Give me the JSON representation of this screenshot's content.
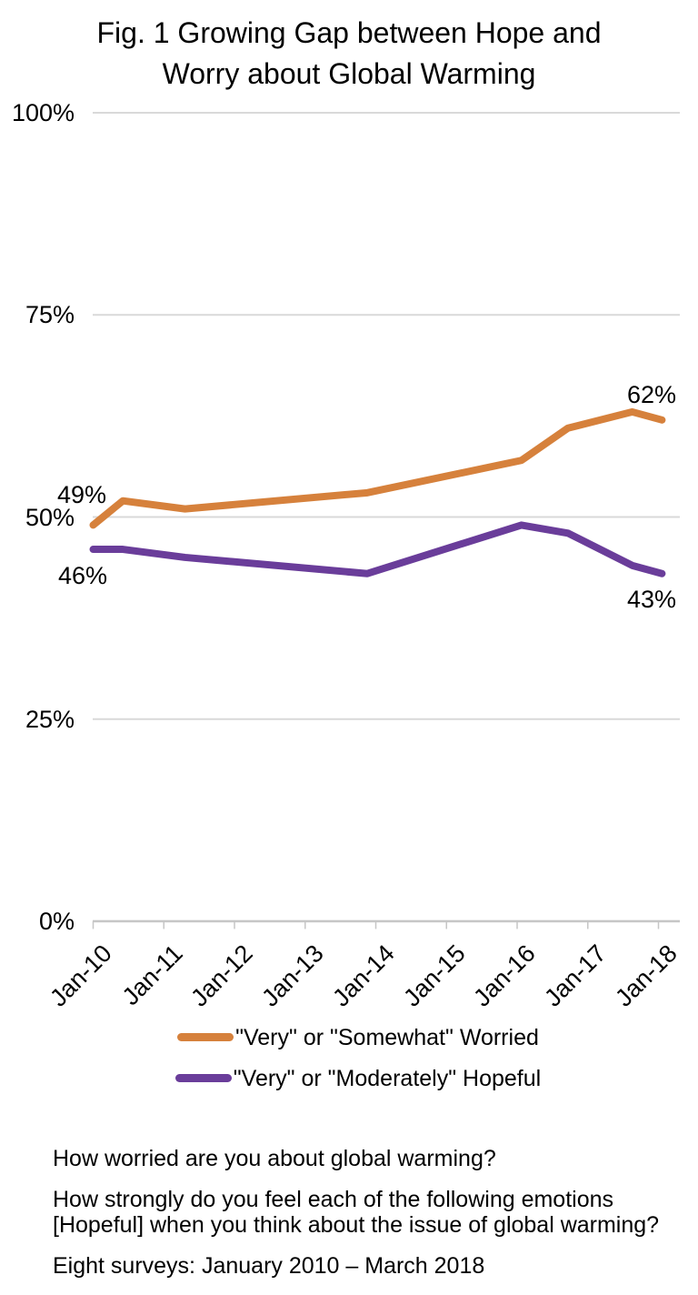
{
  "title": {
    "line1": "Fig. 1 Growing Gap between Hope and",
    "line2": "Worry about Global Warming"
  },
  "chart_data": {
    "type": "line",
    "title": "Fig. 1 Growing Gap between Hope and Worry about Global Warming",
    "x_axis": {
      "tick_labels": [
        "Jan-10",
        "Jan-11",
        "Jan-12",
        "Jan-13",
        "Jan-14",
        "Jan-15",
        "Jan-16",
        "Jan-17",
        "Jan-18"
      ],
      "unit": "years since Jan-2010",
      "range": [
        0,
        8.3
      ]
    },
    "y_axis": {
      "tick_labels": [
        "100%",
        "75%",
        "50%",
        "25%",
        "0%"
      ],
      "tick_values": [
        100,
        75,
        50,
        25,
        0
      ],
      "range": [
        0,
        100
      ],
      "grid": true
    },
    "legend_position": "bottom",
    "series": [
      {
        "name": "\"Very\" or \"Somewhat\" Worried",
        "color": "#D6813C",
        "x": [
          0,
          0.42,
          1.3,
          3.88,
          6.06,
          6.72,
          7.63,
          8.05
        ],
        "values": [
          49,
          52,
          51,
          53,
          57,
          61,
          63,
          62
        ],
        "first_label": "49%",
        "last_label": "62%"
      },
      {
        "name": "\"Very\" or \"Moderately\" Hopeful",
        "color": "#6A3D9A",
        "x": [
          0,
          0.42,
          1.3,
          3.88,
          6.06,
          6.72,
          7.63,
          8.05
        ],
        "values": [
          46,
          46,
          45,
          43,
          49,
          48,
          44,
          43
        ],
        "first_label": "46%",
        "last_label": "43%"
      }
    ]
  },
  "footer": {
    "q1": "How worried are you about global warming?",
    "q2": "How strongly do you feel each of the following emotions [Hopeful] when you think about the issue of global warming?",
    "surveys": "Eight surveys: January 2010 – March 2018"
  }
}
